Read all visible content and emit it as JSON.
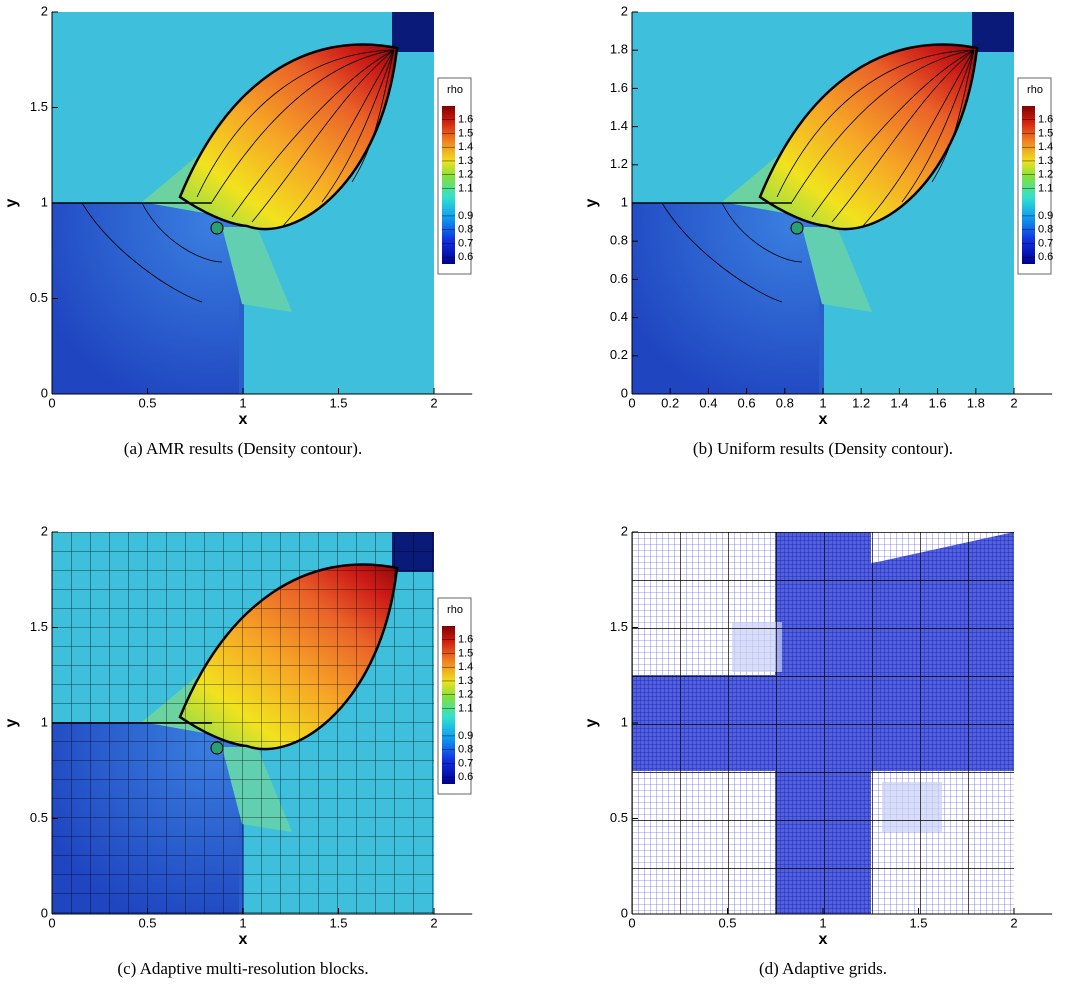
{
  "chart_data": [
    {
      "type": "contour",
      "xlabel": "x",
      "ylabel": "y",
      "caption": "(a) AMR results (Density contour).",
      "xlim": [
        0,
        2.2
      ],
      "ylim": [
        0,
        2
      ],
      "xticks": [
        0,
        0.5,
        1,
        1.5,
        2
      ],
      "yticks": [
        0,
        0.5,
        1,
        1.5,
        2
      ],
      "colorbar": {
        "title": "rho",
        "lim": [
          0.55,
          1.7
        ],
        "ticks": [
          0.6,
          0.7,
          0.8,
          0.9,
          1.1,
          1.2,
          1.3,
          1.4,
          1.5,
          1.6
        ]
      }
    },
    {
      "type": "contour",
      "xlabel": "x",
      "ylabel": "y",
      "caption": "(b) Uniform results (Density contour).",
      "xlim": [
        0,
        2.2
      ],
      "ylim": [
        0,
        2
      ],
      "xticks": [
        0,
        0.2,
        0.4,
        0.6,
        0.8,
        1,
        1.2,
        1.4,
        1.6,
        1.8,
        2
      ],
      "yticks": [
        0,
        0.2,
        0.4,
        0.6,
        0.8,
        1,
        1.2,
        1.4,
        1.6,
        1.8,
        2
      ],
      "colorbar": {
        "title": "rho",
        "lim": [
          0.55,
          1.7
        ],
        "ticks": [
          0.6,
          0.7,
          0.8,
          0.9,
          1.1,
          1.2,
          1.3,
          1.4,
          1.5,
          1.6
        ]
      }
    },
    {
      "type": "contour",
      "xlabel": "x",
      "ylabel": "y",
      "caption": "(c) Adaptive multi-resolution blocks.",
      "xlim": [
        0,
        2.2
      ],
      "ylim": [
        0,
        2
      ],
      "xticks": [
        0,
        0.5,
        1,
        1.5,
        2
      ],
      "yticks": [
        0,
        0.5,
        1,
        1.5,
        2
      ],
      "colorbar": {
        "title": "rho",
        "lim": [
          0.55,
          1.7
        ],
        "ticks": [
          0.6,
          0.7,
          0.8,
          0.9,
          1.1,
          1.2,
          1.3,
          1.4,
          1.5,
          1.6
        ]
      }
    },
    {
      "type": "mesh",
      "xlabel": "x",
      "ylabel": "y",
      "caption": "(d) Adaptive grids.",
      "xlim": [
        0,
        2.2
      ],
      "ylim": [
        0,
        2
      ],
      "xticks": [
        0,
        0.5,
        1,
        1.5,
        2
      ],
      "yticks": [
        0,
        0.5,
        1,
        1.5,
        2
      ]
    }
  ]
}
